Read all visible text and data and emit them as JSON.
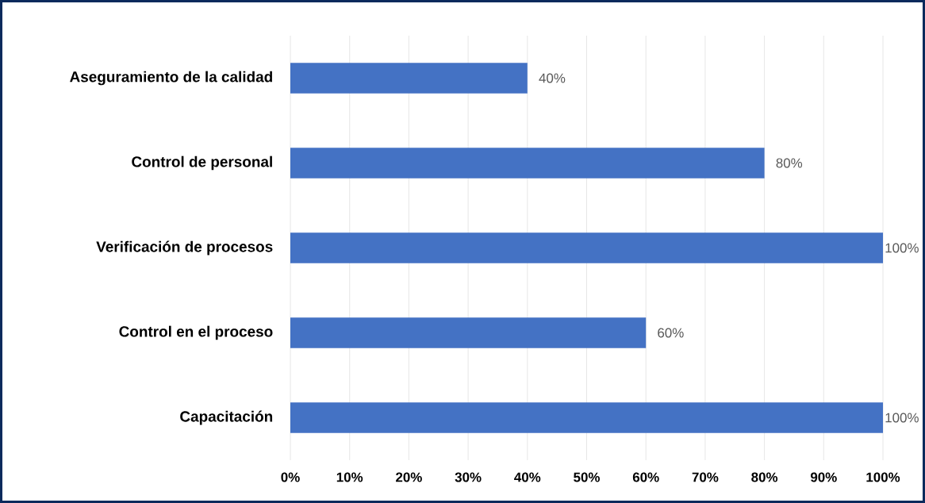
{
  "chart_data": {
    "type": "bar",
    "orientation": "horizontal",
    "categories": [
      "Aseguramiento de la calidad",
      "Control de personal",
      "Verificación de procesos",
      "Control en el proceso",
      "Capacitación"
    ],
    "values": [
      40,
      80,
      100,
      60,
      100
    ],
    "value_labels": [
      "40%",
      "80%",
      "100%",
      "60%",
      "100%"
    ],
    "color": "#4472c4",
    "xlim": [
      0,
      100
    ],
    "xticks": [
      {
        "value": 0,
        "label": "0%"
      },
      {
        "value": 10,
        "label": "10%"
      },
      {
        "value": 20,
        "label": "20%"
      },
      {
        "value": 30,
        "label": "30%"
      },
      {
        "value": 40,
        "label": "40%"
      },
      {
        "value": 50,
        "label": "50%"
      },
      {
        "value": 60,
        "label": "60%"
      },
      {
        "value": 70,
        "label": "70%"
      },
      {
        "value": 80,
        "label": "80%"
      },
      {
        "value": 90,
        "label": "90%"
      },
      {
        "value": 100,
        "label": "100%"
      }
    ],
    "grid": "x"
  }
}
